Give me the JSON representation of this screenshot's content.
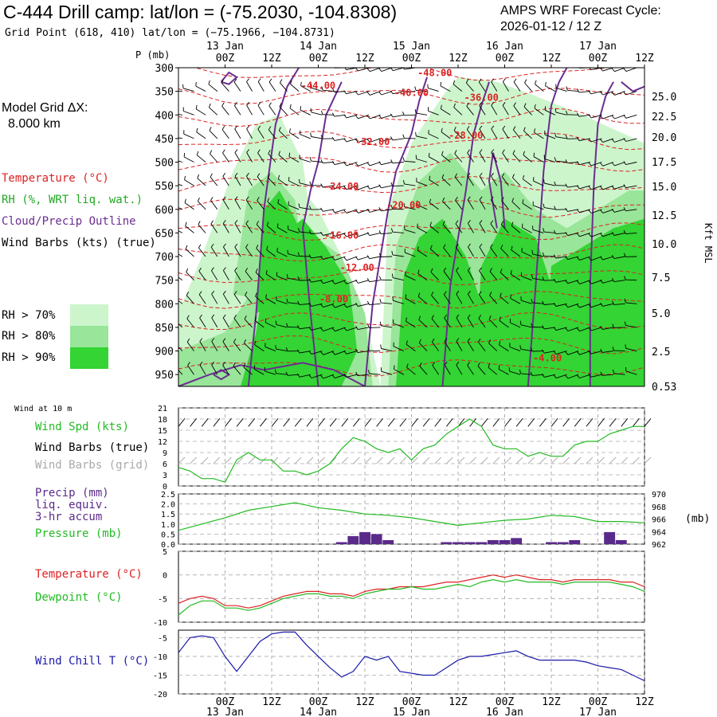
{
  "header": {
    "title": "C-444 Drill camp:  lat/lon = (-75.2030, -104.8308)",
    "subtitle": "Grid Point (618, 410) lat/lon = (−75.1966, −104.8731)",
    "cycle_line1": "AMPS WRF Forecast Cycle:",
    "cycle_line2": "2026-01-12 / 12  Z",
    "p_label": "P (mb)",
    "grid_line1": "Model Grid ΔX:",
    "grid_line2": "8.000 km",
    "kft_label": "Kft MSL",
    "wind10_label": "Wind at 10 m",
    "mb_unit": "(mb)"
  },
  "legend": {
    "temperature": "Temperature (°C)",
    "rh": "RH (%, WRT liq. wat.)",
    "cloud": "Cloud/Precip Outline",
    "wind_barbs": "Wind Barbs (kts) (true)",
    "rh70": "RH > 70%",
    "rh80": "RH > 80%",
    "rh90": "RH > 90%",
    "wind_spd": "Wind Spd (kts)",
    "wind_barbs_true": "Wind Barbs (true)",
    "wind_barbs_grid": "Wind Barbs (grid)",
    "precip1": "Precip (mm)",
    "precip2": "liq. equiv.",
    "precip3": "3-hr accum",
    "pressure": "Pressure (mb)",
    "temp2": "Temperature (°C)",
    "dewpoint": "Dewpoint (°C)",
    "windchill": "Wind Chill T (°C)"
  },
  "colors": {
    "temp": "#dd2222",
    "cloud": "#6a2d8f",
    "rh70": "#ccf5cc",
    "rh80": "#99e599",
    "rh90": "#33d433",
    "spd": "#22bb22",
    "dew": "#22bb22",
    "precip": "#5a2a8a",
    "chill": "#1a1aa8",
    "grid_barb": "#aaaaaa"
  },
  "chart_data": [
    {
      "type": "area",
      "title": "Time-height cross section",
      "x_ticks_top": [
        "00Z",
        "12Z",
        "00Z",
        "12Z",
        "00Z",
        "12Z",
        "00Z",
        "12Z",
        "00Z",
        "12Z"
      ],
      "date_labels_top": [
        "13 Jan",
        "14 Jan",
        "15 Jan",
        "16 Jan",
        "17 Jan"
      ],
      "x_ticks_bottom": [
        "00Z",
        "12Z",
        "00Z",
        "12Z",
        "00Z",
        "12Z",
        "00Z",
        "12Z",
        "00Z",
        "12Z"
      ],
      "date_labels_bottom": [
        "13 Jan",
        "14 Jan",
        "15 Jan",
        "16 Jan",
        "17 Jan"
      ],
      "x_hours": [
        -12,
        108
      ],
      "pressure_levels": [
        300,
        350,
        400,
        450,
        500,
        550,
        600,
        650,
        700,
        750,
        800,
        850,
        900,
        950
      ],
      "ylim_mb": [
        975,
        300
      ],
      "height_kft": [
        25.0,
        22.5,
        20.0,
        17.5,
        15.0,
        12.5,
        10.0,
        7.5,
        5.0,
        2.5,
        0.53
      ],
      "height_kft_labels": [
        "25.0",
        "22.5",
        "20.0",
        "17.5",
        "15.0",
        "12.5",
        "10.0",
        "7.5",
        "5.0",
        "2.5",
        "0.53"
      ],
      "temp_contours": [
        {
          "label": "-48.00",
          "t": 54,
          "p": 318
        },
        {
          "label": "-44.00",
          "t": 24,
          "p": 345
        },
        {
          "label": "-40.00",
          "t": 48,
          "p": 360
        },
        {
          "label": "-36.00",
          "t": 66,
          "p": 370
        },
        {
          "label": "-32.00",
          "t": 38,
          "p": 464
        },
        {
          "label": "-28.00",
          "t": 62,
          "p": 450
        },
        {
          "label": "-24.00",
          "t": 30,
          "p": 558
        },
        {
          "label": "-20.00",
          "t": 46,
          "p": 598
        },
        {
          "label": "-16.00",
          "t": 30,
          "p": 662
        },
        {
          "label": "-12.00",
          "t": 34,
          "p": 730
        },
        {
          "label": "-8.00",
          "t": 28,
          "p": 797
        },
        {
          "label": "-4.00",
          "t": 83,
          "p": 922
        }
      ]
    },
    {
      "type": "line",
      "title": "Wind at 10 m",
      "ylabel": "Wind Spd (kts)",
      "ylim": [
        0,
        21
      ],
      "y_ticks": [
        "21",
        "18",
        "15",
        "12",
        "9",
        "6",
        "3",
        "0"
      ],
      "x_hours": [
        -12,
        -9,
        -6,
        -3,
        0,
        3,
        6,
        9,
        12,
        15,
        18,
        21,
        24,
        27,
        30,
        33,
        36,
        39,
        42,
        45,
        48,
        51,
        54,
        57,
        60,
        63,
        66,
        69,
        72,
        75,
        78,
        81,
        84,
        87,
        90,
        93,
        96,
        99,
        102,
        105,
        108
      ],
      "series": [
        {
          "name": "Wind Spd",
          "values": [
            5,
            4,
            2,
            2,
            1,
            7,
            9,
            7,
            7,
            4,
            4,
            3,
            4,
            6,
            10,
            13,
            12,
            10,
            9,
            10,
            7,
            10,
            11,
            14,
            16,
            18,
            16,
            11,
            10,
            10,
            8,
            9,
            8,
            8,
            11,
            12,
            12,
            14,
            15,
            16,
            16
          ]
        }
      ]
    },
    {
      "type": "bar",
      "title": "Precip and Pressure",
      "ylabel_left": "Precip (mm)",
      "ylim_left": [
        0,
        2.5
      ],
      "y_ticks_left": [
        "2.5",
        "2.0",
        "1.5",
        "1.0",
        "0.5",
        "0.0"
      ],
      "ylabel_right": "Pressure (mb)",
      "ylim_right": [
        962,
        970
      ],
      "y_ticks_right": [
        "970",
        "968",
        "966",
        "964",
        "962"
      ],
      "precip_bar_hours": [
        30,
        33,
        36,
        39,
        42,
        57,
        60,
        63,
        66,
        69,
        72,
        75,
        84,
        87,
        90,
        99,
        102
      ],
      "precip_values": [
        0.1,
        0.4,
        0.6,
        0.5,
        0.2,
        0.1,
        0.1,
        0.1,
        0.1,
        0.2,
        0.2,
        0.3,
        0.1,
        0.1,
        0.2,
        0.6,
        0.2
      ],
      "pressure_hours": [
        -12,
        -6,
        0,
        6,
        12,
        18,
        24,
        30,
        36,
        42,
        48,
        54,
        60,
        66,
        72,
        78,
        84,
        90,
        96,
        102,
        108
      ],
      "pressure_values": [
        964.2,
        965.2,
        966.2,
        967.4,
        968.0,
        968.6,
        967.8,
        967.4,
        966.8,
        966.6,
        966.2,
        965.6,
        965.0,
        965.4,
        965.8,
        966.0,
        966.6,
        966.4,
        965.6,
        965.6,
        965.4
      ]
    },
    {
      "type": "line",
      "title": "Temperature and Dewpoint",
      "ylim": [
        -10,
        5
      ],
      "y_ticks": [
        "5",
        "0",
        "-5",
        "-10"
      ],
      "x_hours": [
        -12,
        -9,
        -6,
        -3,
        0,
        3,
        6,
        9,
        12,
        15,
        18,
        21,
        24,
        27,
        30,
        33,
        36,
        39,
        42,
        45,
        48,
        51,
        54,
        57,
        60,
        63,
        66,
        69,
        72,
        75,
        78,
        81,
        84,
        87,
        90,
        93,
        96,
        99,
        102,
        105,
        108
      ],
      "series": [
        {
          "name": "Temperature",
          "values": [
            -6,
            -5,
            -4.5,
            -5,
            -6.5,
            -6.5,
            -7,
            -6.5,
            -5.5,
            -4.5,
            -4,
            -3.5,
            -3.5,
            -4,
            -4,
            -4.5,
            -3.5,
            -3,
            -3,
            -2.5,
            -2.5,
            -2.5,
            -2,
            -1.5,
            -1.5,
            -1,
            -0.5,
            0,
            -0.5,
            0,
            -0.5,
            -1,
            -1,
            -1.5,
            -1,
            -1,
            -1,
            -1,
            -1.5,
            -1.5,
            -2.5
          ]
        },
        {
          "name": "Dewpoint",
          "values": [
            -8.5,
            -6.5,
            -5.5,
            -5.5,
            -7,
            -7,
            -7.5,
            -7,
            -6,
            -5,
            -4.5,
            -4,
            -4,
            -4.5,
            -4.5,
            -5,
            -4,
            -3.5,
            -3,
            -3,
            -2.5,
            -3,
            -3,
            -2.5,
            -2,
            -2.5,
            -1.5,
            -1,
            -1.5,
            -1,
            -1.5,
            -1.5,
            -1.5,
            -2,
            -1.5,
            -1.5,
            -1.5,
            -1.5,
            -2,
            -2.5,
            -3.5
          ]
        }
      ]
    },
    {
      "type": "line",
      "title": "Wind Chill",
      "ylabel": "Wind Chill T (°C)",
      "ylim": [
        -20,
        -3
      ],
      "y_ticks": [
        "-5",
        "-10",
        "-15",
        "-20"
      ],
      "x_hours": [
        -12,
        -9,
        -6,
        -3,
        0,
        3,
        6,
        9,
        12,
        15,
        18,
        21,
        24,
        27,
        30,
        33,
        36,
        39,
        42,
        45,
        48,
        51,
        54,
        57,
        60,
        63,
        66,
        69,
        72,
        75,
        78,
        81,
        84,
        87,
        90,
        93,
        96,
        99,
        102,
        105,
        108
      ],
      "series": [
        {
          "name": "Wind Chill",
          "values": [
            -9,
            -5,
            -4.5,
            -5,
            -10,
            -14,
            -10,
            -6,
            -4,
            -3.5,
            -3.5,
            -7,
            -10,
            -13,
            -15.5,
            -14,
            -10,
            -11,
            -10,
            -14,
            -14.5,
            -15,
            -15,
            -13,
            -11,
            -10,
            -10,
            -9.5,
            -9,
            -8.5,
            -10,
            -11,
            -11,
            -11,
            -11,
            -11.5,
            -12.5,
            -13,
            -13.5,
            -15,
            -16.5
          ]
        }
      ]
    }
  ]
}
